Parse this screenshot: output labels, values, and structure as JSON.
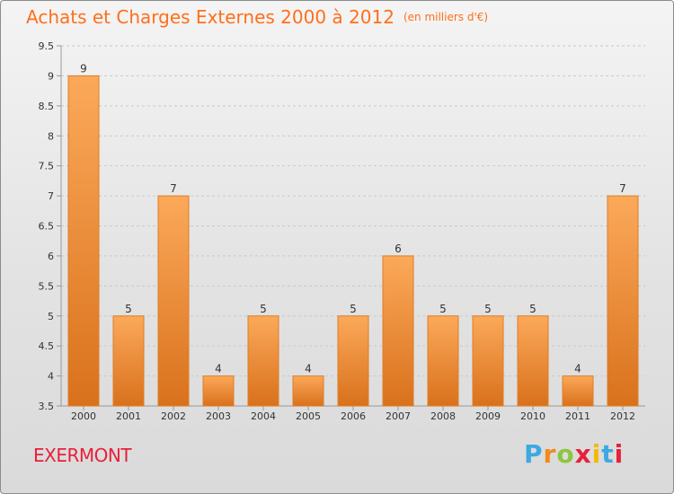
{
  "header": {
    "title": "Achats et Charges Externes 2000 à 2012",
    "units": "(en milliers d'€)"
  },
  "footer": {
    "commune": "EXERMONT",
    "logo_text": "Proxiti",
    "logo_colors": [
      "#3da9e0",
      "#f08a1c",
      "#8cc63f",
      "#e8203b",
      "#f5b800",
      "#3da9e0",
      "#e8203b"
    ]
  },
  "colors": {
    "bar": "#f08a2e",
    "bar_light": "#fba95a",
    "bar_dark": "#d9711c",
    "title": "#ff6f1a",
    "commune": "#e8203b"
  },
  "chart_data": {
    "type": "bar",
    "categories": [
      "2000",
      "2001",
      "2002",
      "2003",
      "2004",
      "2005",
      "2006",
      "2007",
      "2008",
      "2009",
      "2010",
      "2011",
      "2012"
    ],
    "values": [
      9,
      5,
      7,
      4,
      5,
      4,
      5,
      6,
      5,
      5,
      5,
      4,
      7
    ],
    "data_labels": [
      "9",
      "5",
      "7",
      "4",
      "5",
      "4",
      "5",
      "6",
      "5",
      "5",
      "5",
      "4",
      "7"
    ],
    "ylim": [
      3.5,
      9.5
    ],
    "yticks": [
      3.5,
      4,
      4.5,
      5,
      5.5,
      6,
      6.5,
      7,
      7.5,
      8,
      8.5,
      9,
      9.5
    ],
    "ytick_labels": [
      "3.5",
      "4",
      "4.5",
      "5",
      "5.5",
      "6",
      "6.5",
      "7",
      "7.5",
      "8",
      "8.5",
      "9",
      "9.5"
    ],
    "grid": true,
    "xlabel": "",
    "ylabel": ""
  }
}
